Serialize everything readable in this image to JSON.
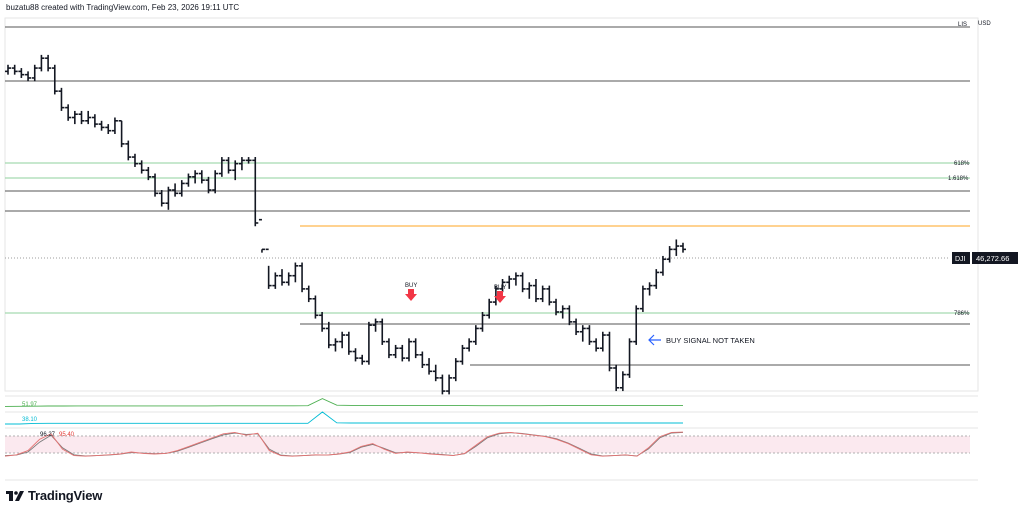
{
  "header": {
    "text": "buzatu88 created with TradingView.com, Feb 23, 2026 19:11 UTC"
  },
  "brand": {
    "name": "TradingView"
  },
  "scale": {
    "mode_label": "LIS",
    "currency_label": "USD"
  },
  "price_badge": {
    "symbol": "DJI",
    "value": "46,272.66"
  },
  "levels": {
    "fib_618": "618%",
    "fib_1618": "1.618%",
    "fib_786": "786%"
  },
  "annotations": {
    "buy_1": "BUY",
    "buy_2": "BUY",
    "note": "BUY SIGNAL NOT TAKEN"
  },
  "indicators": {
    "line_1_value": "51.97",
    "line_2_value": "38.10",
    "stoch_k": "96.27",
    "stoch_d": "95.40"
  },
  "colors": {
    "bars": "#131722",
    "fib_green": "#8fd19e",
    "level_gray": "#555555",
    "level_orange": "#ffb74d",
    "buy_arrow": "#f23645",
    "note_arrow": "#2962ff",
    "ind_green": "#4caf50",
    "ind_cyan": "#00bcd4",
    "stoch_k": "#e57373",
    "stoch_d": "#7a7a7a",
    "stoch_band": "#fbe9ef"
  },
  "chart_data": {
    "type": "ohlc",
    "series": [
      {
        "values": [
          [
            0.87,
            0.89,
            0.86,
            0.88
          ],
          [
            0.88,
            0.89,
            0.86,
            0.87
          ],
          [
            0.87,
            0.88,
            0.85,
            0.86
          ],
          [
            0.86,
            0.87,
            0.84,
            0.85
          ],
          [
            0.85,
            0.89,
            0.84,
            0.88
          ],
          [
            0.88,
            0.92,
            0.87,
            0.91
          ],
          [
            0.91,
            0.92,
            0.87,
            0.88
          ],
          [
            0.88,
            0.89,
            0.8,
            0.81
          ],
          [
            0.81,
            0.82,
            0.75,
            0.76
          ],
          [
            0.76,
            0.77,
            0.72,
            0.73
          ],
          [
            0.73,
            0.75,
            0.71,
            0.74
          ],
          [
            0.74,
            0.75,
            0.71,
            0.72
          ],
          [
            0.72,
            0.75,
            0.71,
            0.73
          ],
          [
            0.73,
            0.74,
            0.7,
            0.71
          ],
          [
            0.71,
            0.72,
            0.69,
            0.7
          ],
          [
            0.7,
            0.71,
            0.68,
            0.69
          ],
          [
            0.69,
            0.73,
            0.68,
            0.72
          ],
          [
            0.72,
            0.72,
            0.64,
            0.65
          ],
          [
            0.65,
            0.66,
            0.6,
            0.61
          ],
          [
            0.61,
            0.62,
            0.58,
            0.59
          ],
          [
            0.59,
            0.6,
            0.56,
            0.57
          ],
          [
            0.57,
            0.58,
            0.54,
            0.55
          ],
          [
            0.55,
            0.56,
            0.49,
            0.5
          ],
          [
            0.5,
            0.51,
            0.46,
            0.47
          ],
          [
            0.47,
            0.52,
            0.45,
            0.51
          ],
          [
            0.51,
            0.53,
            0.49,
            0.5
          ],
          [
            0.5,
            0.54,
            0.49,
            0.53
          ],
          [
            0.53,
            0.56,
            0.52,
            0.55
          ],
          [
            0.55,
            0.57,
            0.53,
            0.56
          ],
          [
            0.56,
            0.57,
            0.53,
            0.54
          ],
          [
            0.54,
            0.55,
            0.5,
            0.51
          ],
          [
            0.51,
            0.57,
            0.5,
            0.56
          ],
          [
            0.56,
            0.61,
            0.55,
            0.6
          ],
          [
            0.6,
            0.61,
            0.56,
            0.57
          ],
          [
            0.57,
            0.6,
            0.54,
            0.59
          ],
          [
            0.59,
            0.61,
            0.57,
            0.6
          ],
          [
            0.6,
            0.61,
            0.59,
            0.6
          ],
          [
            0.6,
            0.61,
            0.4,
            0.41
          ],
          [
            0.42,
            0.33,
            0.32,
            0.33
          ],
          [
            0.33,
            0.28,
            0.21,
            0.22
          ],
          [
            0.22,
            0.26,
            0.21,
            0.25
          ],
          [
            0.25,
            0.27,
            0.22,
            0.23
          ],
          [
            0.23,
            0.26,
            0.22,
            0.25
          ],
          [
            0.25,
            0.29,
            0.23,
            0.28
          ],
          [
            0.28,
            0.29,
            0.2,
            0.21
          ],
          [
            0.21,
            0.22,
            0.17,
            0.18
          ],
          [
            0.18,
            0.19,
            0.12,
            0.13
          ],
          [
            0.13,
            0.14,
            0.08,
            0.09
          ],
          [
            0.09,
            0.11,
            0.03,
            0.04
          ],
          [
            0.04,
            0.06,
            0.02,
            0.05
          ],
          [
            0.05,
            0.08,
            0.03,
            0.07
          ],
          [
            0.07,
            0.08,
            0.01,
            0.02
          ],
          [
            0.02,
            0.03,
            -0.01,
            0.0
          ],
          [
            0.0,
            0.01,
            -0.02,
            -0.01
          ],
          [
            -0.01,
            0.11,
            -0.02,
            0.1
          ],
          [
            0.1,
            0.12,
            0.08,
            0.11
          ],
          [
            0.11,
            0.12,
            0.04,
            0.05
          ],
          [
            0.05,
            0.06,
            0.0,
            0.01
          ],
          [
            0.01,
            0.04,
            0.0,
            0.03
          ],
          [
            0.03,
            0.04,
            -0.01,
            0.0
          ],
          [
            0.0,
            0.06,
            -0.01,
            0.05
          ],
          [
            0.05,
            0.06,
            0.0,
            0.01
          ],
          [
            0.01,
            0.02,
            -0.03,
            -0.02
          ],
          [
            -0.02,
            0.0,
            -0.05,
            -0.04
          ],
          [
            -0.04,
            -0.02,
            -0.07,
            -0.06
          ],
          [
            -0.06,
            -0.05,
            -0.11,
            -0.1
          ],
          [
            -0.1,
            -0.05,
            -0.11,
            -0.06
          ],
          [
            -0.06,
            0.0,
            -0.07,
            -0.01
          ],
          [
            -0.01,
            0.04,
            -0.02,
            0.03
          ],
          [
            0.03,
            0.06,
            0.02,
            0.05
          ],
          [
            0.05,
            0.1,
            0.04,
            0.09
          ],
          [
            0.09,
            0.14,
            0.08,
            0.13
          ],
          [
            0.13,
            0.18,
            0.12,
            0.17
          ],
          [
            0.17,
            0.22,
            0.16,
            0.21
          ],
          [
            0.21,
            0.24,
            0.2,
            0.23
          ],
          [
            0.23,
            0.25,
            0.21,
            0.24
          ],
          [
            0.24,
            0.26,
            0.22,
            0.25
          ],
          [
            0.25,
            0.26,
            0.2,
            0.21
          ],
          [
            0.21,
            0.23,
            0.18,
            0.22
          ],
          [
            0.22,
            0.24,
            0.17,
            0.18
          ],
          [
            0.18,
            0.22,
            0.17,
            0.21
          ],
          [
            0.21,
            0.22,
            0.16,
            0.17
          ],
          [
            0.17,
            0.18,
            0.13,
            0.14
          ],
          [
            0.14,
            0.16,
            0.12,
            0.15
          ],
          [
            0.15,
            0.16,
            0.1,
            0.11
          ],
          [
            0.11,
            0.12,
            0.07,
            0.08
          ],
          [
            0.08,
            0.1,
            0.05,
            0.09
          ],
          [
            0.09,
            0.1,
            0.04,
            0.05
          ],
          [
            0.05,
            0.06,
            0.02,
            0.03
          ],
          [
            0.03,
            0.08,
            0.02,
            0.07
          ],
          [
            0.07,
            0.08,
            -0.04,
            -0.03
          ],
          [
            -0.03,
            -0.02,
            -0.1,
            -0.09
          ],
          [
            -0.09,
            -0.04,
            -0.1,
            -0.05
          ],
          [
            -0.05,
            0.06,
            -0.06,
            0.05
          ],
          [
            0.05,
            0.16,
            0.04,
            0.15
          ],
          [
            0.15,
            0.22,
            0.14,
            0.21
          ],
          [
            0.21,
            0.23,
            0.19,
            0.22
          ],
          [
            0.22,
            0.27,
            0.21,
            0.26
          ],
          [
            0.26,
            0.31,
            0.25,
            0.3
          ],
          [
            0.3,
            0.34,
            0.29,
            0.33
          ],
          [
            0.33,
            0.36,
            0.31,
            0.34
          ],
          [
            0.34,
            0.35,
            0.32,
            0.33
          ]
        ]
      }
    ],
    "indicator_lines": [
      {
        "values": [
          0.3,
          0.31,
          0.32,
          0.33,
          0.33,
          0.34,
          0.34,
          0.34,
          0.34,
          0.34,
          0.34,
          0.34,
          0.34,
          0.34,
          0.34,
          0.35,
          0.35,
          0.35,
          0.35,
          0.35,
          0.35,
          0.36,
          0.95,
          0.4,
          0.38,
          0.38,
          0.38,
          0.37,
          0.37,
          0.37,
          0.37,
          0.37,
          0.37,
          0.36,
          0.36,
          0.36,
          0.36,
          0.36,
          0.37,
          0.37,
          0.37,
          0.37,
          0.37,
          0.37,
          0.37,
          0.37,
          0.37,
          0.38
        ]
      },
      {
        "values": [
          0.0,
          0.0,
          0.05,
          0.06,
          0.06,
          0.06,
          0.06,
          0.06,
          0.06,
          0.06,
          0.06,
          0.06,
          0.06,
          0.06,
          0.06,
          0.06,
          0.06,
          0.06,
          0.06,
          0.06,
          0.06,
          0.06,
          1.0,
          0.1,
          0.08,
          0.08,
          0.08,
          0.08,
          0.08,
          0.08,
          0.08,
          0.08,
          0.08,
          0.08,
          0.08,
          0.08,
          0.08,
          0.08,
          0.08,
          0.08,
          0.08,
          0.08,
          0.08,
          0.08,
          0.08,
          0.08,
          0.08,
          0.08
        ]
      }
    ],
    "stochastic": {
      "k": [
        0.1,
        0.15,
        0.3,
        0.7,
        0.9,
        0.35,
        0.12,
        0.1,
        0.12,
        0.15,
        0.18,
        0.25,
        0.2,
        0.18,
        0.2,
        0.3,
        0.45,
        0.6,
        0.75,
        0.9,
        0.95,
        0.85,
        0.92,
        0.3,
        0.12,
        0.1,
        0.12,
        0.15,
        0.14,
        0.18,
        0.25,
        0.45,
        0.55,
        0.35,
        0.2,
        0.25,
        0.22,
        0.18,
        0.15,
        0.12,
        0.2,
        0.5,
        0.8,
        0.92,
        0.95,
        0.9,
        0.85,
        0.8,
        0.7,
        0.55,
        0.35,
        0.15,
        0.1,
        0.12,
        0.15,
        0.1,
        0.4,
        0.8,
        0.95,
        0.96
      ],
      "d": [
        0.12,
        0.14,
        0.25,
        0.6,
        0.85,
        0.4,
        0.15,
        0.11,
        0.12,
        0.14,
        0.17,
        0.23,
        0.21,
        0.19,
        0.2,
        0.28,
        0.42,
        0.57,
        0.72,
        0.86,
        0.93,
        0.88,
        0.9,
        0.35,
        0.14,
        0.11,
        0.12,
        0.14,
        0.14,
        0.17,
        0.23,
        0.42,
        0.52,
        0.38,
        0.22,
        0.24,
        0.22,
        0.19,
        0.16,
        0.13,
        0.19,
        0.46,
        0.76,
        0.9,
        0.94,
        0.91,
        0.86,
        0.81,
        0.72,
        0.57,
        0.38,
        0.18,
        0.11,
        0.12,
        0.14,
        0.11,
        0.36,
        0.76,
        0.93,
        0.95
      ]
    }
  }
}
